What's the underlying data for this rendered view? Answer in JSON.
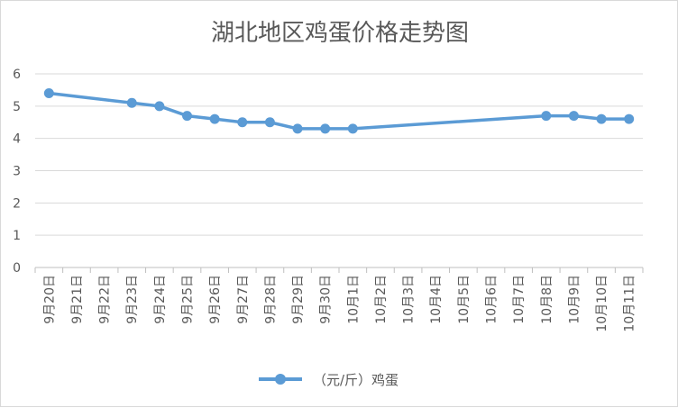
{
  "chart_data": {
    "type": "line",
    "title": "湖北地区鸡蛋价格走势图",
    "xlabel": "",
    "ylabel": "",
    "ylim": [
      0,
      6
    ],
    "y_ticks": [
      "0",
      "1",
      "2",
      "3",
      "4",
      "5",
      "6"
    ],
    "grid": true,
    "legend_position": "bottom",
    "categories": [
      "9月20日",
      "9月21日",
      "9月22日",
      "9月23日",
      "9月24日",
      "9月25日",
      "9月26日",
      "9月27日",
      "9月28日",
      "9月29日",
      "9月30日",
      "10月1日",
      "10月2日",
      "10月3日",
      "10月4日",
      "10月5日",
      "10月6日",
      "10月7日",
      "10月8日",
      "10月9日",
      "10月10日",
      "10月11日"
    ],
    "series": [
      {
        "name": "（元/斤）鸡蛋",
        "color": "#5b9bd5",
        "values": [
          5.4,
          null,
          null,
          5.1,
          5.0,
          4.7,
          4.6,
          4.5,
          4.5,
          4.3,
          4.3,
          4.3,
          null,
          null,
          null,
          null,
          null,
          null,
          4.7,
          4.7,
          4.6,
          4.6
        ]
      }
    ]
  }
}
